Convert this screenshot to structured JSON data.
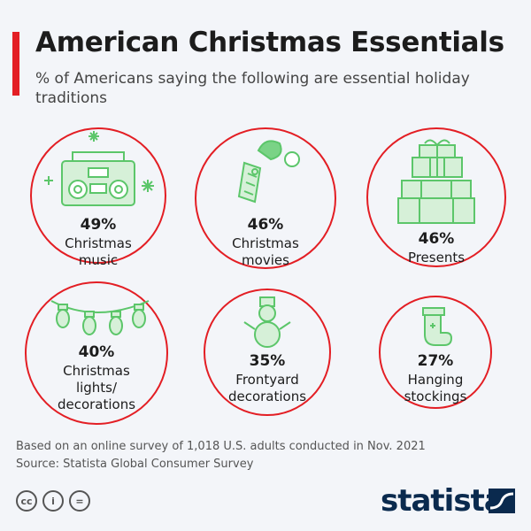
{
  "title": "American Christmas Essentials",
  "subtitle": "% of Americans saying the following are essential holiday traditions",
  "chart_data": {
    "type": "table",
    "unit": "%",
    "items": [
      {
        "label": "Christmas\nmusic",
        "value": 49,
        "display": "49%",
        "icon": "boombox-icon"
      },
      {
        "label": "Christmas\nmovies",
        "value": 46,
        "display": "46%",
        "icon": "grinch-movie-ticket-icon"
      },
      {
        "label": "Presents",
        "value": 46,
        "display": "46%",
        "icon": "stacked-presents-icon"
      },
      {
        "label": "Christmas\nlights/\ndecorations",
        "value": 40,
        "display": "40%",
        "icon": "string-lights-icon"
      },
      {
        "label": "Frontyard\ndecorations",
        "value": 35,
        "display": "35%",
        "icon": "snowman-icon"
      },
      {
        "label": "Hanging\nstockings",
        "value": 27,
        "display": "27%",
        "icon": "stocking-icon"
      }
    ]
  },
  "footnote": {
    "line1": "Based on an online survey of 1,018 U.S. adults conducted in Nov. 2021",
    "line2": "Source: Statista Global Consumer Survey"
  },
  "license": {
    "cc": "cc",
    "by": "i",
    "nd": "="
  },
  "brand": "statista",
  "colors": {
    "accent": "#e31e24",
    "icon": "#5cc66a",
    "brand": "#0a2a4e"
  }
}
